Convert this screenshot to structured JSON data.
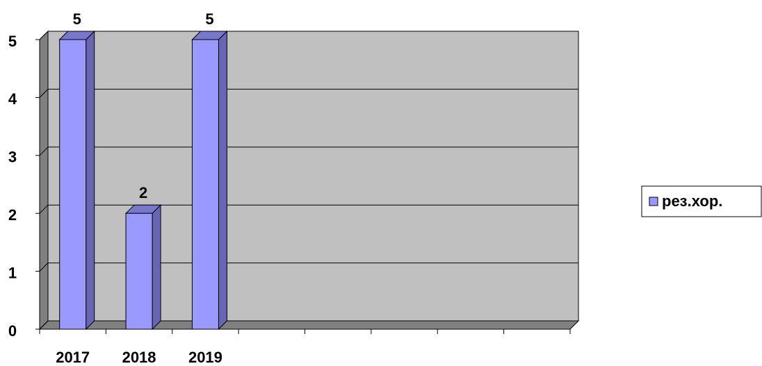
{
  "chart_data": {
    "type": "bar3d",
    "categories": [
      "2017",
      "2018",
      "2019",
      null,
      null,
      null,
      null,
      null
    ],
    "series": [
      {
        "name": "рез.хор.",
        "color": "#9999ff",
        "values": [
          5,
          2,
          5,
          null,
          null,
          null,
          null,
          null
        ]
      }
    ],
    "ylim": [
      0,
      5
    ],
    "yticks": [
      0,
      1,
      2,
      3,
      4,
      5
    ],
    "grid": true,
    "legend": "right"
  }
}
